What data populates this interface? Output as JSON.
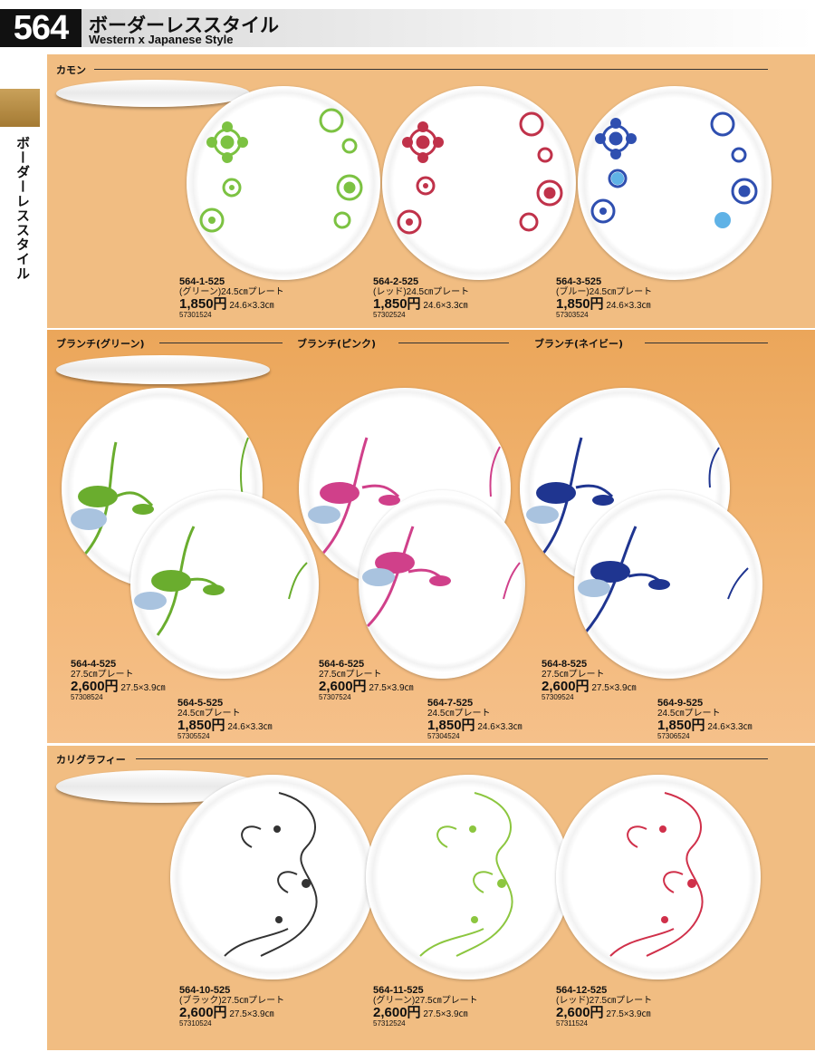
{
  "header": {
    "page_number": "564",
    "title": "ボーダーレススタイル",
    "subtitle": "Western x Japanese Style"
  },
  "side_tab": {
    "label": "ボーダーレススタイル"
  },
  "sections": {
    "kamon": {
      "title": "カモン"
    },
    "branch_green": {
      "title": "ブランチ(グリーン)"
    },
    "branch_pink": {
      "title": "ブランチ(ピンク)"
    },
    "branch_navy": {
      "title": "ブランチ(ネイビー)"
    },
    "calligraphy": {
      "title": "カリグラフィー"
    }
  },
  "products": [
    {
      "code": "564-1-525",
      "desc": "(グリーン)24.5㎝プレート",
      "price": "1,850円",
      "size": "24.6×3.3㎝",
      "jan": "57301524"
    },
    {
      "code": "564-2-525",
      "desc": "(レッド)24.5㎝プレート",
      "price": "1,850円",
      "size": "24.6×3.3㎝",
      "jan": "57302524"
    },
    {
      "code": "564-3-525",
      "desc": "(ブルー)24.5㎝プレート",
      "price": "1,850円",
      "size": "24.6×3.3㎝",
      "jan": "57303524"
    },
    {
      "code": "564-4-525",
      "desc": "27.5㎝プレート",
      "price": "2,600円",
      "size": "27.5×3.9㎝",
      "jan": "57308524"
    },
    {
      "code": "564-5-525",
      "desc": "24.5㎝プレート",
      "price": "1,850円",
      "size": "24.6×3.3㎝",
      "jan": "57305524"
    },
    {
      "code": "564-6-525",
      "desc": "27.5㎝プレート",
      "price": "2,600円",
      "size": "27.5×3.9㎝",
      "jan": "57307524"
    },
    {
      "code": "564-7-525",
      "desc": "24.5㎝プレート",
      "price": "1,850円",
      "size": "24.6×3.3㎝",
      "jan": "57304524"
    },
    {
      "code": "564-8-525",
      "desc": "27.5㎝プレート",
      "price": "2,600円",
      "size": "27.5×3.9㎝",
      "jan": "57309524"
    },
    {
      "code": "564-9-525",
      "desc": "24.5㎝プレート",
      "price": "1,850円",
      "size": "24.6×3.3㎝",
      "jan": "57306524"
    },
    {
      "code": "564-10-525",
      "desc": "(ブラック)27.5㎝プレート",
      "price": "2,600円",
      "size": "27.5×3.9㎝",
      "jan": "57310524"
    },
    {
      "code": "564-11-525",
      "desc": "(グリーン)27.5㎝プレート",
      "price": "2,600円",
      "size": "27.5×3.9㎝",
      "jan": "57312524"
    },
    {
      "code": "564-12-525",
      "desc": "(レッド)27.5㎝プレート",
      "price": "2,600円",
      "size": "27.5×3.9㎝",
      "jan": "57311524"
    }
  ],
  "colors": {
    "kamon_green": "#7cc242",
    "kamon_red": "#c0324a",
    "kamon_blue": "#2f4fb0",
    "branch_green": "#6aad2e",
    "branch_pink": "#d0408a",
    "branch_navy": "#1f3590",
    "branch_shadow": "#a9c3df",
    "calli_black": "#333333",
    "calli_green": "#8cc63f",
    "calli_red": "#d0304a"
  }
}
